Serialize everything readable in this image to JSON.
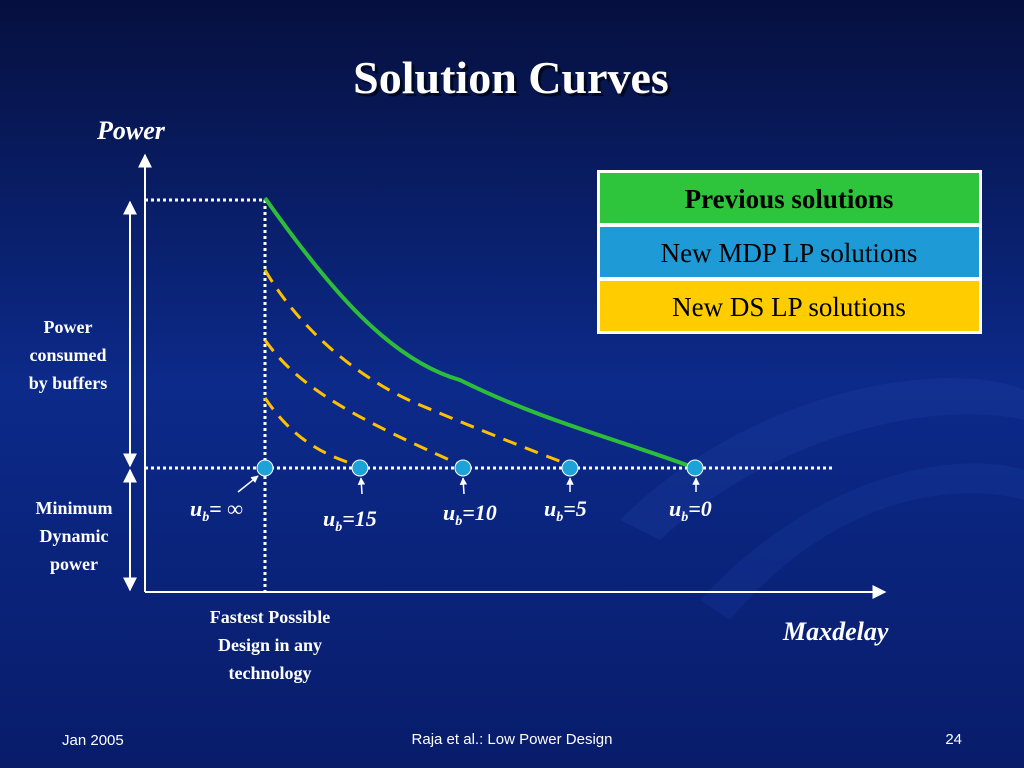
{
  "title": "Solution Curves",
  "y_axis_label": "Power",
  "x_axis_label": "Maxdelay",
  "legend": [
    "Previous solutions",
    "New MDP LP solutions",
    "New DS LP solutions"
  ],
  "buffer_power_label": [
    "Power",
    "consumed",
    "by buffers"
  ],
  "min_power_label": [
    "Minimum",
    "Dynamic",
    "power"
  ],
  "fastest_label": [
    "Fastest Possible",
    "Design in any",
    "technology"
  ],
  "points": [
    {
      "base": "u",
      "sub": "b",
      "rest": "= ∞"
    },
    {
      "base": "u",
      "sub": "b",
      "rest": "=15"
    },
    {
      "base": "u",
      "sub": "b",
      "rest": "=10"
    },
    {
      "base": "u",
      "sub": "b",
      "rest": "=5"
    },
    {
      "base": "u",
      "sub": "b",
      "rest": "=0"
    }
  ],
  "footer": {
    "left": "Jan 2005",
    "center": "Raja et al.: Low Power Design",
    "right": "24"
  }
}
